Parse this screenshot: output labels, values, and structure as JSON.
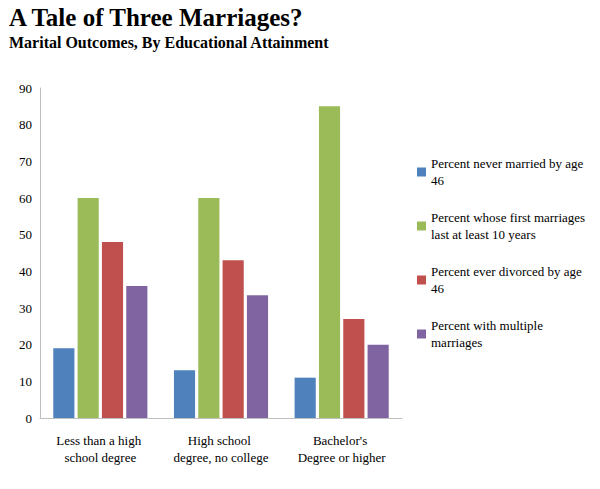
{
  "chart_data": {
    "type": "bar",
    "title": "A Tale of Three Marriages?",
    "subtitle": "Marital Outcomes, By Educational Attainment",
    "categories": [
      "Less than a high school degree",
      "High school degree, no college",
      "Bachelor's Degree or higher"
    ],
    "series": [
      {
        "name": "Percent never married by age 46",
        "color": "#4f81bd",
        "values": [
          19,
          13,
          11
        ]
      },
      {
        "name": "Percent whose first marriages last at least 10 years",
        "color": "#9bbb59",
        "values": [
          60,
          60,
          85
        ]
      },
      {
        "name": "Percent ever divorced by age 46",
        "color": "#c0504d",
        "values": [
          48,
          43,
          27
        ]
      },
      {
        "name": "Percent with multiple marriages",
        "color": "#8064a2",
        "values": [
          36,
          33.5,
          20
        ]
      }
    ],
    "ylim": [
      0,
      90
    ],
    "yticks": [
      0,
      10,
      20,
      30,
      40,
      50,
      60,
      70,
      80,
      90
    ],
    "grid": false,
    "legend": "right",
    "data_labels": false
  }
}
